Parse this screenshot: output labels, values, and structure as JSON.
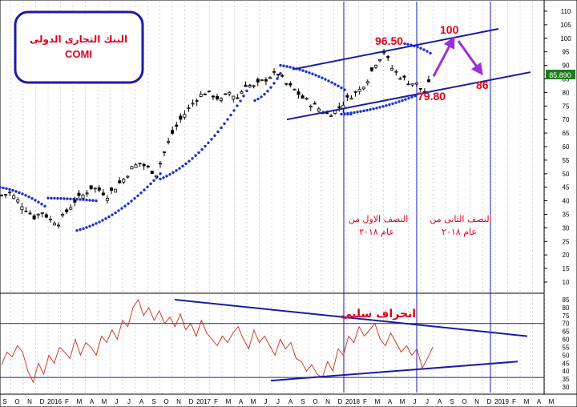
{
  "chart_data": [
    {
      "type": "candlestick",
      "series": [
        {
          "name": "",
          "values_note": ""
        }
      ],
      "title_box": {
        "line1": "البنك التجارى الدولى",
        "line2": "COMI"
      },
      "y_ticks": [
        "110",
        "105",
        "100",
        "95",
        "90",
        "85",
        "80",
        "75",
        "70",
        "65",
        "60",
        "55",
        "50",
        "45",
        "40",
        "35",
        "30",
        "25",
        "20",
        "15",
        "10"
      ],
      "ylim": [
        8,
        112
      ],
      "x_ticks": [
        "S",
        "O",
        "N",
        "D",
        "2016",
        "F",
        "M",
        "A",
        "M",
        "J",
        "J",
        "A",
        "S",
        "O",
        "N",
        "D",
        "2017",
        "F",
        "M",
        "A",
        "M",
        "J",
        "J",
        "A",
        "S",
        "O",
        "N",
        "D",
        "2018",
        "F",
        "M",
        "A",
        "M",
        "J",
        "J",
        "A",
        "S",
        "O",
        "N",
        "D",
        "2019",
        "F",
        "M",
        "A",
        "M"
      ],
      "last_price": "85.890",
      "annotations": {
        "high": "96.50",
        "target_up": "100",
        "support": "79.80",
        "target_down": "86",
        "h1_line1": "النصف الاول من",
        "h1_line2": "عام ٢٠١٨",
        "h2_line1": "النصف الثانى من",
        "h2_line2": "عام ٢٠١٨"
      },
      "colors": {
        "candles": "#000000",
        "sar_dots": "#1a2fd0",
        "trend_lines": "#1a1aa8",
        "labels_red": "#e0001a",
        "arrows": "#9b30d8",
        "grid": "#b5b5b5",
        "last_price_box": "#1f7a1f"
      },
      "price_points": [
        {
          "i": 0,
          "c": 42
        },
        {
          "i": 4,
          "c": 43
        },
        {
          "i": 8,
          "c": 40
        },
        {
          "i": 12,
          "c": 37
        },
        {
          "i": 16,
          "c": 34
        },
        {
          "i": 20,
          "c": 36
        },
        {
          "i": 24,
          "c": 33
        },
        {
          "i": 28,
          "c": 32
        },
        {
          "i": 32,
          "c": 36
        },
        {
          "i": 36,
          "c": 40
        },
        {
          "i": 40,
          "c": 42
        },
        {
          "i": 44,
          "c": 45
        },
        {
          "i": 48,
          "c": 44
        },
        {
          "i": 52,
          "c": 42
        },
        {
          "i": 56,
          "c": 45
        },
        {
          "i": 60,
          "c": 48
        },
        {
          "i": 64,
          "c": 52
        },
        {
          "i": 68,
          "c": 54
        },
        {
          "i": 72,
          "c": 52
        },
        {
          "i": 76,
          "c": 50
        },
        {
          "i": 80,
          "c": 58
        },
        {
          "i": 84,
          "c": 65
        },
        {
          "i": 88,
          "c": 70
        },
        {
          "i": 92,
          "c": 74
        },
        {
          "i": 96,
          "c": 78
        },
        {
          "i": 100,
          "c": 80
        },
        {
          "i": 104,
          "c": 79
        },
        {
          "i": 108,
          "c": 77
        },
        {
          "i": 112,
          "c": 80
        },
        {
          "i": 116,
          "c": 78
        },
        {
          "i": 120,
          "c": 83
        },
        {
          "i": 124,
          "c": 82
        },
        {
          "i": 128,
          "c": 84
        },
        {
          "i": 132,
          "c": 86
        },
        {
          "i": 136,
          "c": 87
        },
        {
          "i": 140,
          "c": 83
        },
        {
          "i": 144,
          "c": 81
        },
        {
          "i": 148,
          "c": 78
        },
        {
          "i": 152,
          "c": 76
        },
        {
          "i": 156,
          "c": 74
        },
        {
          "i": 160,
          "c": 72
        },
        {
          "i": 164,
          "c": 73
        },
        {
          "i": 168,
          "c": 76
        },
        {
          "i": 172,
          "c": 79
        },
        {
          "i": 176,
          "c": 81
        },
        {
          "i": 180,
          "c": 85
        },
        {
          "i": 184,
          "c": 91
        },
        {
          "i": 188,
          "c": 95
        },
        {
          "i": 192,
          "c": 89
        },
        {
          "i": 196,
          "c": 86
        },
        {
          "i": 200,
          "c": 84
        },
        {
          "i": 204,
          "c": 83
        },
        {
          "i": 208,
          "c": 80
        },
        {
          "i": 212,
          "c": 85.9
        }
      ]
    },
    {
      "type": "line",
      "y_ticks": [
        "85",
        "80",
        "75",
        "70",
        "65",
        "60",
        "55",
        "50",
        "45",
        "40",
        "35",
        "30"
      ],
      "ylim": [
        28,
        88
      ],
      "annotation": "انحراف سلبى",
      "colors": {
        "line": "#cc2a1a",
        "trend": "#1a1aa8",
        "hline": "#1a1aa8"
      },
      "rsi_values": [
        44,
        52,
        49,
        56,
        52,
        40,
        33,
        45,
        38,
        50,
        45,
        55,
        52,
        48,
        60,
        50,
        58,
        55,
        50,
        62,
        58,
        66,
        60,
        72,
        68,
        80,
        85,
        75,
        80,
        72,
        78,
        70,
        74,
        68,
        76,
        66,
        70,
        62,
        72,
        64,
        60,
        56,
        62,
        58,
        64,
        68,
        60,
        54,
        66,
        58,
        62,
        56,
        50,
        60,
        54,
        58,
        48,
        46,
        40,
        44,
        38,
        36,
        46,
        40,
        54,
        50,
        62,
        58,
        68,
        62,
        66,
        70,
        60,
        56,
        64,
        58,
        52,
        56,
        50,
        54,
        42,
        48,
        55
      ]
    }
  ]
}
